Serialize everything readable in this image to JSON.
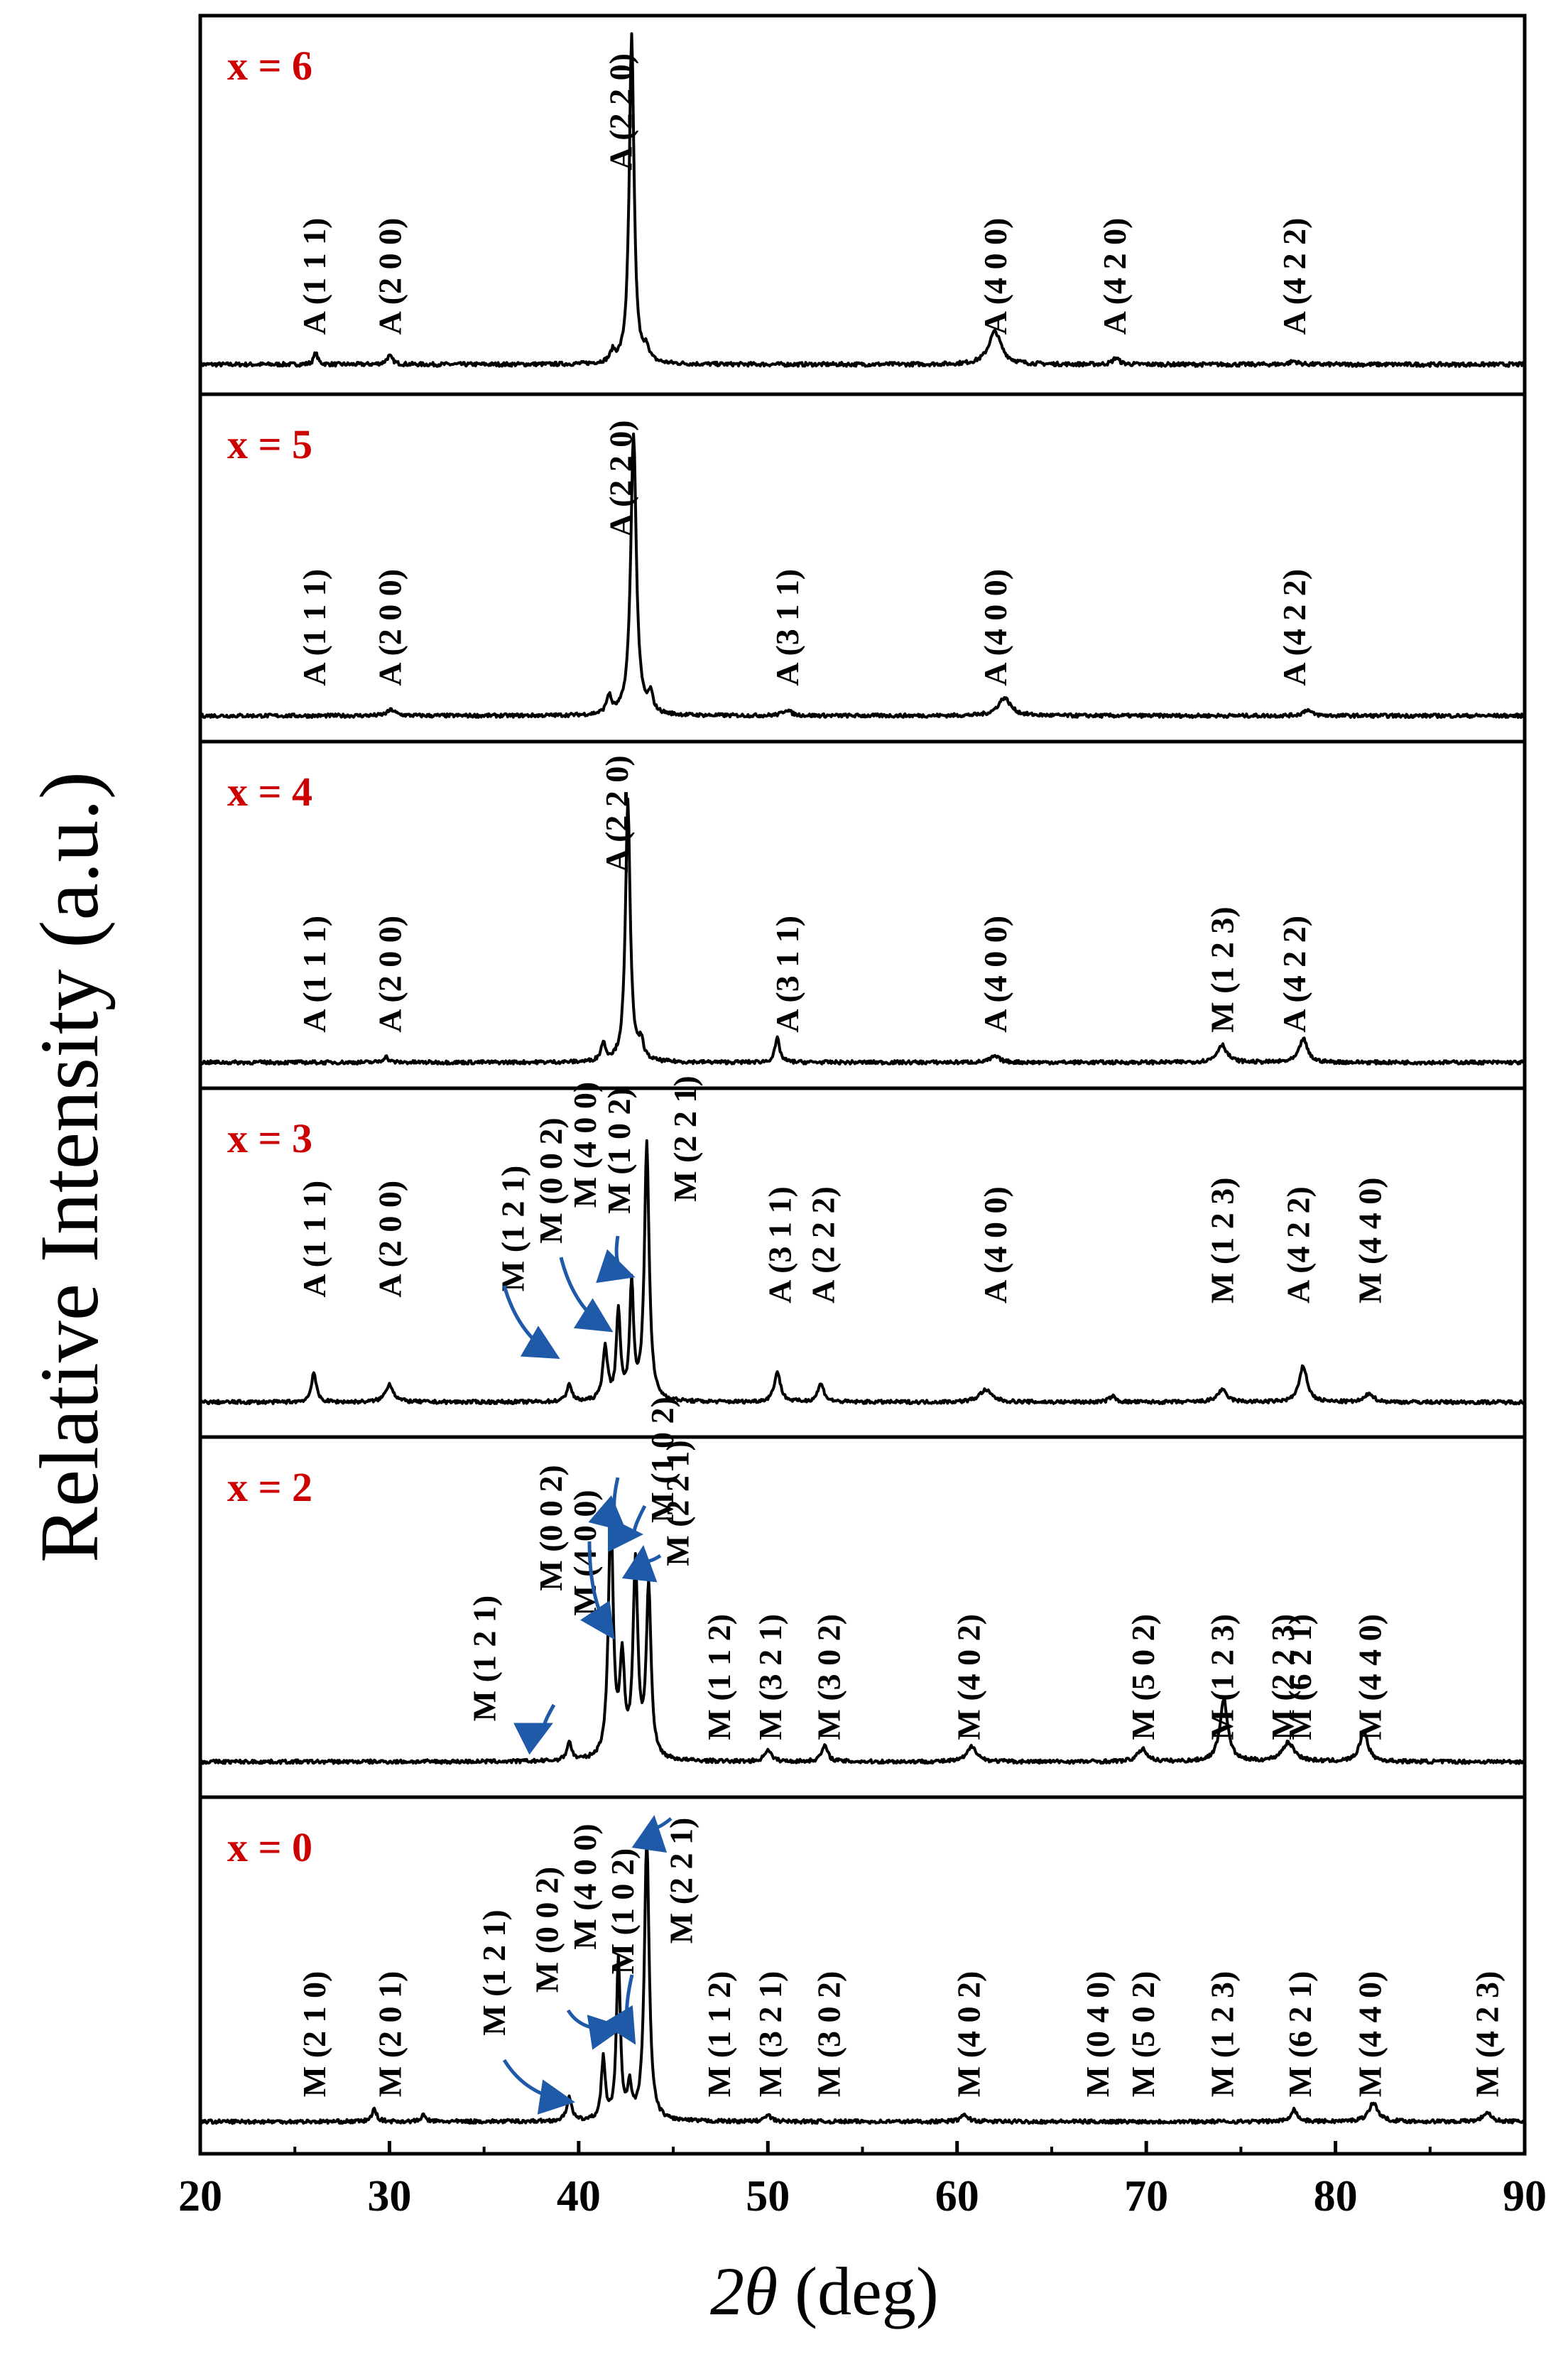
{
  "figure": {
    "ylabel": "Relative Intensity (a.u.)",
    "xlabel_symbol": "2θ",
    "xlabel_unit": " (deg)"
  },
  "colors": {
    "trace": "#000000",
    "composition": "#cc0000",
    "arrow": "#1f5aa8"
  },
  "chart_data": {
    "type": "line",
    "xlim": [
      20,
      90
    ],
    "xticks": [
      20,
      30,
      40,
      50,
      60,
      70,
      80,
      90
    ],
    "xlabel": "2θ (deg)",
    "ylabel": "Relative Intensity (a.u.)",
    "yticks_visible": false,
    "panels": [
      {
        "label": "x = 6",
        "baseline": 0.03,
        "peaks": [
          [
            26.1,
            0.035,
            0.25
          ],
          [
            30.0,
            0.025,
            0.4
          ],
          [
            41.8,
            0.03,
            0.3
          ],
          [
            42.8,
            1.0,
            0.3
          ],
          [
            43.6,
            0.04,
            0.3
          ],
          [
            62.0,
            0.1,
            0.8
          ],
          [
            68.4,
            0.02,
            0.4
          ],
          [
            77.8,
            0.01,
            0.5
          ]
        ],
        "annotations": [
          {
            "text": "A (1 1 1)",
            "x": 26.0,
            "y": 0.12
          },
          {
            "text": "A (2 0 0)",
            "x": 30.0,
            "y": 0.12
          },
          {
            "text": "A (2 2 0)",
            "x": 42.2,
            "y": 0.62
          },
          {
            "text": "A (4 0 0)",
            "x": 62.0,
            "y": 0.12
          },
          {
            "text": "A (4 2 0)",
            "x": 68.3,
            "y": 0.12
          },
          {
            "text": "A (4 2 2)",
            "x": 77.8,
            "y": 0.12
          }
        ]
      },
      {
        "label": "x = 5",
        "baseline": 0.02,
        "peaks": [
          [
            30.1,
            0.02,
            0.5
          ],
          [
            41.6,
            0.06,
            0.3
          ],
          [
            42.9,
            0.95,
            0.35
          ],
          [
            43.8,
            0.06,
            0.3
          ],
          [
            51.0,
            0.02,
            0.5
          ],
          [
            62.5,
            0.06,
            0.8
          ],
          [
            78.5,
            0.02,
            0.5
          ]
        ],
        "annotations": [
          {
            "text": "A (1 1 1)",
            "x": 26.0,
            "y": 0.12
          },
          {
            "text": "A (2 0 0)",
            "x": 30.0,
            "y": 0.12
          },
          {
            "text": "A (2 2 0)",
            "x": 42.2,
            "y": 0.62
          },
          {
            "text": "A (3 1 1)",
            "x": 51.0,
            "y": 0.12
          },
          {
            "text": "A (4 0 0)",
            "x": 62.0,
            "y": 0.12
          },
          {
            "text": "A (4 2 2)",
            "x": 77.8,
            "y": 0.12
          }
        ]
      },
      {
        "label": "x = 4",
        "baseline": 0.02,
        "peaks": [
          [
            29.8,
            0.02,
            0.3
          ],
          [
            41.3,
            0.06,
            0.3
          ],
          [
            42.6,
            0.88,
            0.3
          ],
          [
            43.3,
            0.06,
            0.3
          ],
          [
            50.5,
            0.08,
            0.3
          ],
          [
            62.0,
            0.02,
            0.6
          ],
          [
            74.0,
            0.06,
            0.6
          ],
          [
            78.3,
            0.08,
            0.5
          ]
        ],
        "annotations": [
          {
            "text": "A (1 1 1)",
            "x": 26.0,
            "y": 0.12
          },
          {
            "text": "A (2 0 0)",
            "x": 30.0,
            "y": 0.12
          },
          {
            "text": "A (2 2 0)",
            "x": 42.0,
            "y": 0.66
          },
          {
            "text": "A (3 1 1)",
            "x": 51.0,
            "y": 0.12
          },
          {
            "text": "A (4 0 0)",
            "x": 62.0,
            "y": 0.12
          },
          {
            "text": "M (1 2 3)",
            "x": 74.0,
            "y": 0.12
          },
          {
            "text": "A (4 2 2)",
            "x": 77.8,
            "y": 0.12
          }
        ]
      },
      {
        "label": "x = 3",
        "baseline": 0.05,
        "peaks": [
          [
            26.0,
            0.1,
            0.3
          ],
          [
            30.0,
            0.06,
            0.5
          ],
          [
            39.5,
            0.06,
            0.3
          ],
          [
            41.4,
            0.18,
            0.3
          ],
          [
            42.1,
            0.3,
            0.25
          ],
          [
            42.8,
            0.38,
            0.25
          ],
          [
            43.6,
            0.86,
            0.3
          ],
          [
            50.5,
            0.1,
            0.4
          ],
          [
            52.8,
            0.06,
            0.4
          ],
          [
            61.5,
            0.04,
            0.8
          ],
          [
            68.2,
            0.02,
            0.4
          ],
          [
            74.0,
            0.04,
            0.6
          ],
          [
            78.3,
            0.12,
            0.5
          ],
          [
            81.8,
            0.03,
            0.5
          ]
        ],
        "annotations": [
          {
            "text": "A (1 1 1)",
            "x": 26.0,
            "y": 0.4
          },
          {
            "text": "A (2 0 0)",
            "x": 30.0,
            "y": 0.4
          },
          {
            "text": "M (1 2 1)",
            "x": 36.5,
            "y": 0.42
          },
          {
            "text": "M (0 0 2)",
            "x": 38.5,
            "y": 0.58
          },
          {
            "text": "M (4 0 0)",
            "x": 40.3,
            "y": 0.7
          },
          {
            "text": "M (1 0 2)",
            "x": 42.1,
            "y": 0.68
          },
          {
            "text": "M (2 2 1)",
            "x": 45.6,
            "y": 0.72
          },
          {
            "text": "A (3 1 1)",
            "x": 50.6,
            "y": 0.38
          },
          {
            "text": "A (2 2 2)",
            "x": 52.9,
            "y": 0.38
          },
          {
            "text": "A (4 0 0)",
            "x": 62.0,
            "y": 0.38
          },
          {
            "text": "M (1 2 3)",
            "x": 74.0,
            "y": 0.38
          },
          {
            "text": "A (4 2 2)",
            "x": 78.0,
            "y": 0.38
          },
          {
            "text": "M (4 4 0)",
            "x": 81.8,
            "y": 0.38
          }
        ]
      },
      {
        "label": "x = 2",
        "baseline": 0.05,
        "peaks": [
          [
            39.5,
            0.06,
            0.3
          ],
          [
            41.7,
            0.8,
            0.3
          ],
          [
            42.3,
            0.3,
            0.3
          ],
          [
            43.0,
            0.62,
            0.3
          ],
          [
            43.7,
            0.55,
            0.3
          ],
          [
            50.0,
            0.04,
            0.4
          ],
          [
            53.0,
            0.05,
            0.4
          ],
          [
            60.8,
            0.05,
            0.6
          ],
          [
            69.8,
            0.04,
            0.6
          ],
          [
            74.1,
            0.2,
            0.5
          ],
          [
            77.5,
            0.06,
            0.8
          ],
          [
            81.5,
            0.1,
            0.5
          ]
        ],
        "annotations": [
          {
            "text": "M (1 2 1)",
            "x": 35.0,
            "y": 0.18
          },
          {
            "text": "M (0 0 2)",
            "x": 38.5,
            "y": 0.6
          },
          {
            "text": "M (4 0 0)",
            "x": 40.3,
            "y": 0.52
          },
          {
            "text": "M (1 0 2)",
            "x": 44.4,
            "y": 0.82
          },
          {
            "text": "M (2 2 1)",
            "x": 45.2,
            "y": 0.68
          },
          {
            "text": "M (1 1 2)",
            "x": 47.4,
            "y": 0.12
          },
          {
            "text": "M (3 2 1)",
            "x": 50.1,
            "y": 0.12
          },
          {
            "text": "M (3 0 2)",
            "x": 53.2,
            "y": 0.12
          },
          {
            "text": "M (4 0 2)",
            "x": 60.6,
            "y": 0.12
          },
          {
            "text": "M (5 0 2)",
            "x": 69.8,
            "y": 0.12
          },
          {
            "text": "M (1 2 3)",
            "x": 74.0,
            "y": 0.12
          },
          {
            "text": "M (2 2 3)",
            "x": 77.2,
            "y": 0.12
          },
          {
            "text": "M (6 2 1)",
            "x": 78.1,
            "y": 0.12
          },
          {
            "text": "M (4 4 0)",
            "x": 81.8,
            "y": 0.12
          }
        ]
      },
      {
        "label": "x = 0",
        "baseline": 0.04,
        "peaks": [
          [
            29.2,
            0.04,
            0.3
          ],
          [
            31.8,
            0.02,
            0.3
          ],
          [
            39.5,
            0.08,
            0.3
          ],
          [
            41.3,
            0.2,
            0.25
          ],
          [
            42.1,
            0.52,
            0.25
          ],
          [
            42.7,
            0.1,
            0.25
          ],
          [
            43.6,
            0.92,
            0.3
          ],
          [
            50.0,
            0.02,
            0.4
          ],
          [
            60.4,
            0.02,
            0.5
          ],
          [
            77.8,
            0.04,
            0.4
          ],
          [
            82.0,
            0.06,
            0.6
          ],
          [
            88.0,
            0.03,
            0.5
          ]
        ],
        "annotations": [
          {
            "text": "M (2 1 0)",
            "x": 26.0,
            "y": 0.12
          },
          {
            "text": "M (2 0 1)",
            "x": 30.0,
            "y": 0.12
          },
          {
            "text": "M (1 2 1)",
            "x": 35.5,
            "y": 0.32
          },
          {
            "text": "M (0 0 2)",
            "x": 38.3,
            "y": 0.46
          },
          {
            "text": "M (4 0 0)",
            "x": 40.3,
            "y": 0.6
          },
          {
            "text": "M (1 0 2)",
            "x": 42.3,
            "y": 0.52
          },
          {
            "text": "M (2 2 1)",
            "x": 45.4,
            "y": 0.62
          },
          {
            "text": "M (1 1 2)",
            "x": 47.4,
            "y": 0.12
          },
          {
            "text": "M (3 2 1)",
            "x": 50.1,
            "y": 0.12
          },
          {
            "text": "M (3 0 2)",
            "x": 53.2,
            "y": 0.12
          },
          {
            "text": "M (4 0 2)",
            "x": 60.6,
            "y": 0.12
          },
          {
            "text": "M (0 4 0)",
            "x": 67.4,
            "y": 0.12
          },
          {
            "text": "M (5 0 2)",
            "x": 69.8,
            "y": 0.12
          },
          {
            "text": "M (1 2 3)",
            "x": 74.0,
            "y": 0.12
          },
          {
            "text": "M (6 2 1)",
            "x": 78.1,
            "y": 0.12
          },
          {
            "text": "M (4 4 0)",
            "x": 81.8,
            "y": 0.12
          },
          {
            "text": "M (4 2 3)",
            "x": 88.0,
            "y": 0.12
          }
        ]
      }
    ]
  }
}
